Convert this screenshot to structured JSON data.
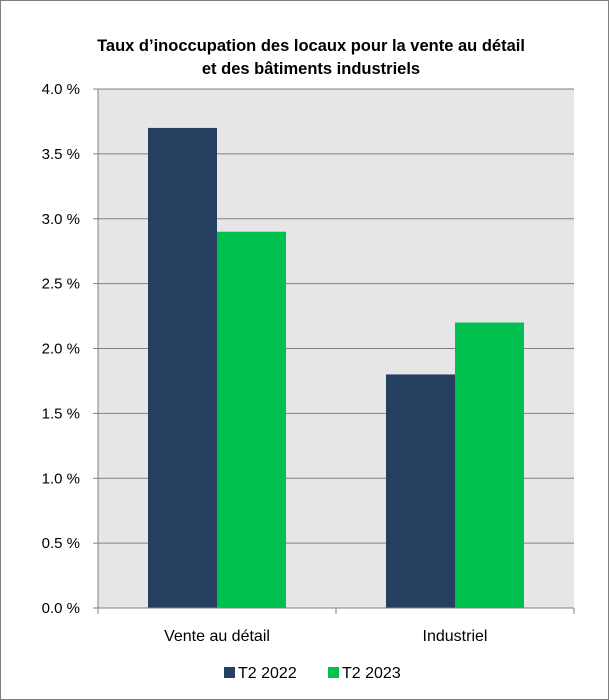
{
  "chart_data": {
    "type": "bar",
    "title": "Taux d’inoccupation des locaux pour la vente au détail et des bâtiments industriels",
    "categories": [
      "Vente au détail",
      "Industriel"
    ],
    "series": [
      {
        "name": "T2 2022",
        "values": [
          3.7,
          1.8
        ],
        "color": "#243f60"
      },
      {
        "name": "T2 2023",
        "values": [
          2.9,
          2.2
        ],
        "color": "#00c050"
      }
    ],
    "yticks": [
      "0.0 %",
      "0.5 %",
      "1.0 %",
      "1.5 %",
      "2.0 %",
      "2.5 %",
      "3.0 %",
      "3.5 %",
      "4.0 %"
    ],
    "ylim": [
      0,
      4.0
    ],
    "grid": true,
    "legend": "bottom",
    "plot_background": "#e6e6e6",
    "grid_color": "#808080"
  }
}
